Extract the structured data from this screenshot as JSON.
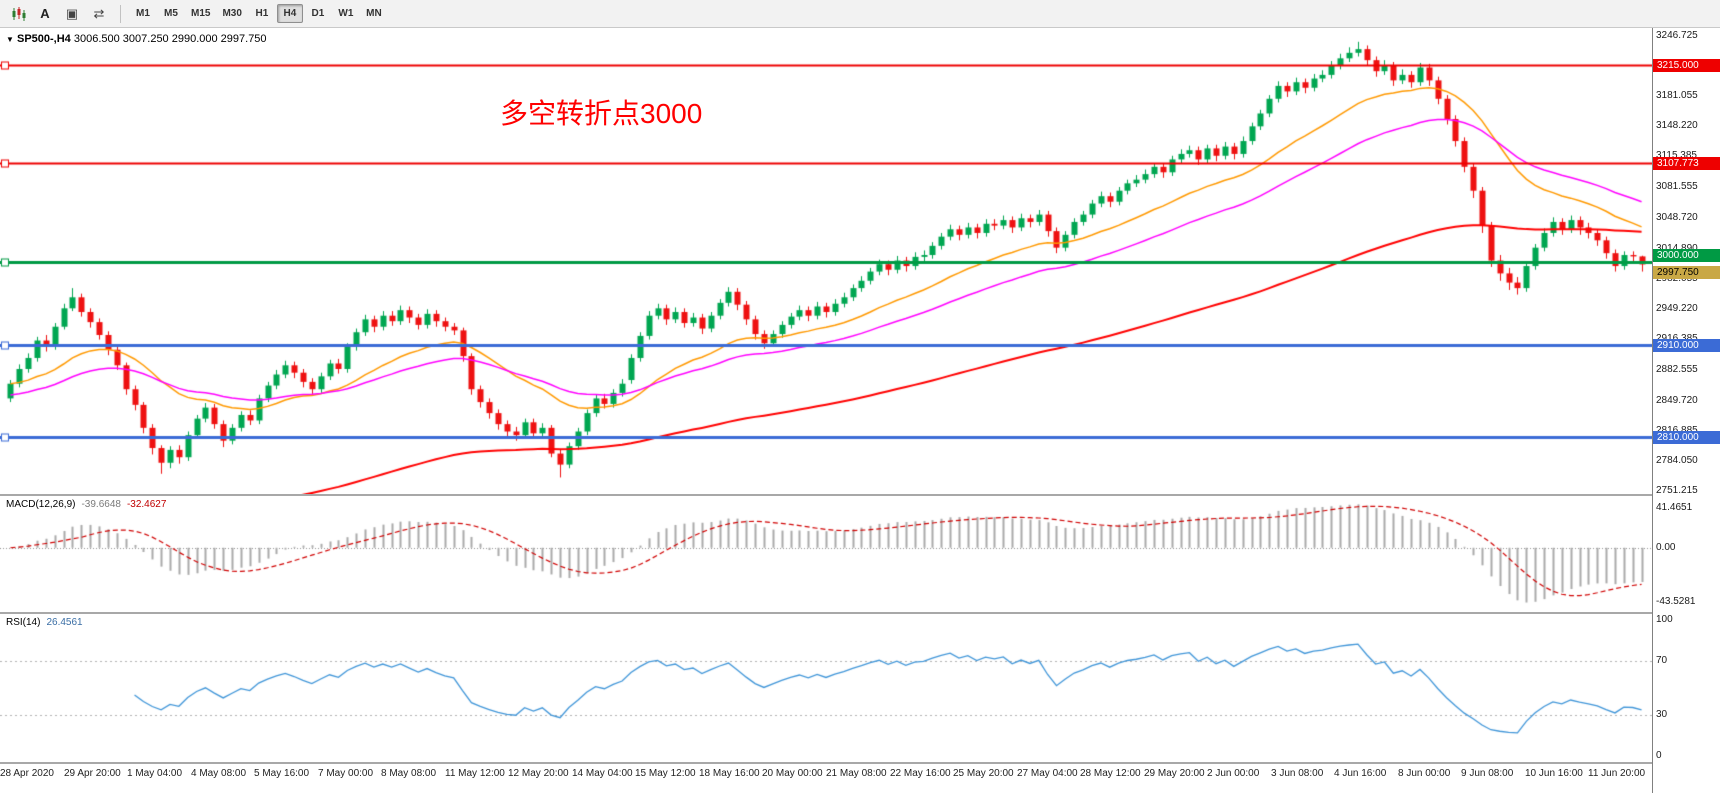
{
  "toolbar": {
    "icons": [
      "chart-window-icon",
      "text-tool-icon",
      "objects-icon",
      "auto-scroll-icon"
    ],
    "timeframes": [
      "M1",
      "M5",
      "M15",
      "M30",
      "H1",
      "H4",
      "D1",
      "W1",
      "MN"
    ],
    "active_timeframe": "H4"
  },
  "chart": {
    "symbol_text": "SP500-,H4",
    "ohlc_text": "3006.500 3007.250 2990.000 2997.750",
    "annotation": {
      "text": "多空转折点3000",
      "color": "#ff0000"
    },
    "price_axis": {
      "labels": [
        "3246.725",
        "3213.890",
        "3181.055",
        "3148.220",
        "3115.385",
        "3081.555",
        "3048.720",
        "3014.890",
        "2982.055",
        "2949.220",
        "2916.385",
        "2882.555",
        "2849.720",
        "2816.885",
        "2784.050",
        "2751.215"
      ]
    },
    "hlines": [
      {
        "price": 3215.0,
        "label": "3215.000",
        "color": "#ee0000",
        "width": 2
      },
      {
        "price": 3107.773,
        "label": "3107.773",
        "color": "#ee0000",
        "width": 2
      },
      {
        "price": 3000.0,
        "label": "3000.000",
        "color": "#009a44",
        "width": 3
      },
      {
        "price": 2910.0,
        "label": "2910.000",
        "color": "#3b6bd6",
        "width": 3
      },
      {
        "price": 2810.0,
        "label": "2810.000",
        "color": "#3b6bd6",
        "width": 3
      }
    ],
    "current_price": {
      "value": 2997.75,
      "label": "2997.750",
      "bg": "#c9a845"
    }
  },
  "chart_data": {
    "type": "candlestick-ohlc",
    "symbol": "SP500-",
    "timeframe": "H4",
    "price_range": {
      "min": 2748,
      "max": 3255
    },
    "colors": {
      "up": "#00a651",
      "down": "#ee1111"
    },
    "moving_averages": [
      {
        "name": "fast-ma",
        "color": "#ff9900",
        "period": 21,
        "width": 1.5
      },
      {
        "name": "medium-ma",
        "color": "#ff00ff",
        "period": 40,
        "seed": 2855,
        "width": 1.5
      },
      {
        "name": "slow-ma",
        "color": "#ff0000",
        "period": 120,
        "seed": 2660,
        "width": 2
      }
    ],
    "candles": [
      [
        2852,
        2872,
        2848,
        2868
      ],
      [
        2868,
        2889,
        2864,
        2884
      ],
      [
        2884,
        2901,
        2880,
        2896
      ],
      [
        2896,
        2919,
        2892,
        2915
      ],
      [
        2915,
        2921,
        2903,
        2908
      ],
      [
        2908,
        2934,
        2905,
        2930
      ],
      [
        2930,
        2955,
        2927,
        2950
      ],
      [
        2950,
        2972,
        2947,
        2962
      ],
      [
        2962,
        2966,
        2941,
        2946
      ],
      [
        2946,
        2950,
        2929,
        2935
      ],
      [
        2935,
        2939,
        2916,
        2921
      ],
      [
        2921,
        2925,
        2899,
        2905
      ],
      [
        2905,
        2909,
        2883,
        2888
      ],
      [
        2888,
        2891,
        2856,
        2862
      ],
      [
        2862,
        2866,
        2839,
        2845
      ],
      [
        2845,
        2848,
        2814,
        2820
      ],
      [
        2820,
        2824,
        2791,
        2798
      ],
      [
        2798,
        2801,
        2770,
        2782
      ],
      [
        2782,
        2800,
        2776,
        2796
      ],
      [
        2796,
        2801,
        2781,
        2788
      ],
      [
        2788,
        2816,
        2784,
        2812
      ],
      [
        2812,
        2834,
        2808,
        2830
      ],
      [
        2830,
        2847,
        2826,
        2842
      ],
      [
        2842,
        2846,
        2819,
        2824
      ],
      [
        2824,
        2828,
        2799,
        2806
      ],
      [
        2806,
        2824,
        2802,
        2820
      ],
      [
        2820,
        2838,
        2816,
        2834
      ],
      [
        2834,
        2839,
        2823,
        2828
      ],
      [
        2828,
        2856,
        2824,
        2852
      ],
      [
        2852,
        2870,
        2848,
        2866
      ],
      [
        2866,
        2883,
        2862,
        2878
      ],
      [
        2878,
        2893,
        2874,
        2888
      ],
      [
        2888,
        2892,
        2874,
        2880
      ],
      [
        2880,
        2884,
        2864,
        2870
      ],
      [
        2870,
        2874,
        2856,
        2862
      ],
      [
        2862,
        2880,
        2858,
        2876
      ],
      [
        2876,
        2894,
        2872,
        2890
      ],
      [
        2890,
        2895,
        2879,
        2884
      ],
      [
        2884,
        2912,
        2880,
        2908
      ],
      [
        2908,
        2928,
        2904,
        2924
      ],
      [
        2924,
        2943,
        2920,
        2938
      ],
      [
        2938,
        2942,
        2924,
        2930
      ],
      [
        2930,
        2947,
        2926,
        2942
      ],
      [
        2942,
        2947,
        2931,
        2936
      ],
      [
        2936,
        2953,
        2932,
        2948
      ],
      [
        2948,
        2952,
        2934,
        2940
      ],
      [
        2940,
        2944,
        2927,
        2932
      ],
      [
        2932,
        2949,
        2928,
        2944
      ],
      [
        2944,
        2948,
        2930,
        2936
      ],
      [
        2936,
        2940,
        2925,
        2930
      ],
      [
        2930,
        2934,
        2921,
        2926
      ],
      [
        2926,
        2929,
        2892,
        2898
      ],
      [
        2898,
        2901,
        2856,
        2862
      ],
      [
        2862,
        2866,
        2842,
        2848
      ],
      [
        2848,
        2852,
        2830,
        2836
      ],
      [
        2836,
        2840,
        2818,
        2824
      ],
      [
        2824,
        2828,
        2810,
        2816
      ],
      [
        2816,
        2821,
        2806,
        2812
      ],
      [
        2812,
        2830,
        2808,
        2826
      ],
      [
        2826,
        2830,
        2808,
        2814
      ],
      [
        2814,
        2825,
        2810,
        2820
      ],
      [
        2820,
        2823,
        2788,
        2792
      ],
      [
        2792,
        2796,
        2766,
        2780
      ],
      [
        2780,
        2804,
        2776,
        2800
      ],
      [
        2800,
        2820,
        2796,
        2816
      ],
      [
        2816,
        2840,
        2812,
        2836
      ],
      [
        2836,
        2856,
        2832,
        2852
      ],
      [
        2852,
        2857,
        2841,
        2846
      ],
      [
        2846,
        2862,
        2842,
        2858
      ],
      [
        2858,
        2873,
        2854,
        2868
      ],
      [
        2872,
        2900,
        2868,
        2896
      ],
      [
        2896,
        2924,
        2892,
        2920
      ],
      [
        2920,
        2947,
        2916,
        2942
      ],
      [
        2942,
        2955,
        2938,
        2950
      ],
      [
        2950,
        2954,
        2932,
        2938
      ],
      [
        2938,
        2951,
        2934,
        2946
      ],
      [
        2946,
        2950,
        2929,
        2934
      ],
      [
        2934,
        2945,
        2930,
        2940
      ],
      [
        2940,
        2944,
        2922,
        2928
      ],
      [
        2928,
        2946,
        2924,
        2942
      ],
      [
        2942,
        2960,
        2938,
        2956
      ],
      [
        2956,
        2973,
        2952,
        2968
      ],
      [
        2968,
        2972,
        2948,
        2954
      ],
      [
        2954,
        2958,
        2932,
        2938
      ],
      [
        2938,
        2942,
        2916,
        2922
      ],
      [
        2922,
        2926,
        2906,
        2912
      ],
      [
        2912,
        2926,
        2908,
        2922
      ],
      [
        2922,
        2936,
        2918,
        2932
      ],
      [
        2932,
        2945,
        2928,
        2941
      ],
      [
        2941,
        2953,
        2937,
        2948
      ],
      [
        2948,
        2952,
        2936,
        2942
      ],
      [
        2942,
        2957,
        2938,
        2952
      ],
      [
        2952,
        2956,
        2940,
        2946
      ],
      [
        2946,
        2960,
        2942,
        2955
      ],
      [
        2955,
        2967,
        2951,
        2962
      ],
      [
        2962,
        2976,
        2958,
        2972
      ],
      [
        2972,
        2985,
        2968,
        2980
      ],
      [
        2980,
        2994,
        2976,
        2990
      ],
      [
        2990,
        3003,
        2986,
        2998
      ],
      [
        2998,
        3002,
        2986,
        2992
      ],
      [
        2992,
        3007,
        2988,
        3002
      ],
      [
        3002,
        3006,
        2990,
        2996
      ],
      [
        2996,
        3011,
        2992,
        3006
      ],
      [
        3006,
        3013,
        3001,
        3008
      ],
      [
        3008,
        3022,
        3004,
        3018
      ],
      [
        3018,
        3032,
        3014,
        3028
      ],
      [
        3028,
        3041,
        3024,
        3036
      ],
      [
        3036,
        3040,
        3024,
        3030
      ],
      [
        3030,
        3043,
        3026,
        3038
      ],
      [
        3038,
        3042,
        3026,
        3032
      ],
      [
        3032,
        3047,
        3028,
        3042
      ],
      [
        3042,
        3047,
        3035,
        3040
      ],
      [
        3040,
        3051,
        3036,
        3046
      ],
      [
        3046,
        3050,
        3032,
        3038
      ],
      [
        3038,
        3053,
        3034,
        3048
      ],
      [
        3048,
        3052,
        3038,
        3044
      ],
      [
        3044,
        3057,
        3040,
        3052
      ],
      [
        3052,
        3056,
        3028,
        3034
      ],
      [
        3034,
        3038,
        3010,
        3016
      ],
      [
        3016,
        3034,
        3012,
        3030
      ],
      [
        3030,
        3048,
        3026,
        3044
      ],
      [
        3044,
        3056,
        3040,
        3052
      ],
      [
        3052,
        3068,
        3048,
        3064
      ],
      [
        3064,
        3077,
        3060,
        3072
      ],
      [
        3072,
        3076,
        3060,
        3066
      ],
      [
        3066,
        3082,
        3062,
        3078
      ],
      [
        3078,
        3090,
        3074,
        3086
      ],
      [
        3086,
        3095,
        3082,
        3090
      ],
      [
        3090,
        3101,
        3086,
        3096
      ],
      [
        3096,
        3108,
        3092,
        3104
      ],
      [
        3104,
        3108,
        3092,
        3098
      ],
      [
        3098,
        3116,
        3094,
        3112
      ],
      [
        3112,
        3123,
        3108,
        3118
      ],
      [
        3118,
        3127,
        3114,
        3122
      ],
      [
        3122,
        3126,
        3106,
        3112
      ],
      [
        3112,
        3128,
        3108,
        3124
      ],
      [
        3124,
        3128,
        3110,
        3116
      ],
      [
        3116,
        3131,
        3112,
        3126
      ],
      [
        3126,
        3130,
        3112,
        3118
      ],
      [
        3118,
        3137,
        3114,
        3132
      ],
      [
        3132,
        3152,
        3128,
        3148
      ],
      [
        3148,
        3166,
        3144,
        3162
      ],
      [
        3162,
        3182,
        3158,
        3178
      ],
      [
        3178,
        3197,
        3174,
        3192
      ],
      [
        3192,
        3196,
        3180,
        3186
      ],
      [
        3186,
        3201,
        3182,
        3196
      ],
      [
        3196,
        3200,
        3184,
        3190
      ],
      [
        3190,
        3205,
        3186,
        3200
      ],
      [
        3200,
        3209,
        3196,
        3204
      ],
      [
        3204,
        3219,
        3200,
        3214
      ],
      [
        3214,
        3227,
        3210,
        3222
      ],
      [
        3222,
        3234,
        3218,
        3228
      ],
      [
        3228,
        3240,
        3224,
        3232
      ],
      [
        3232,
        3236,
        3214,
        3220
      ],
      [
        3220,
        3224,
        3202,
        3208
      ],
      [
        3208,
        3220,
        3204,
        3214
      ],
      [
        3214,
        3218,
        3192,
        3198
      ],
      [
        3198,
        3210,
        3194,
        3204
      ],
      [
        3204,
        3208,
        3190,
        3196
      ],
      [
        3196,
        3217,
        3192,
        3212
      ],
      [
        3212,
        3216,
        3192,
        3198
      ],
      [
        3198,
        3202,
        3172,
        3178
      ],
      [
        3178,
        3182,
        3150,
        3156
      ],
      [
        3156,
        3160,
        3126,
        3132
      ],
      [
        3132,
        3136,
        3098,
        3104
      ],
      [
        3104,
        3108,
        3070,
        3078
      ],
      [
        3078,
        3082,
        3032,
        3040
      ],
      [
        3040,
        3044,
        2995,
        3002
      ],
      [
        3002,
        3008,
        2980,
        2988
      ],
      [
        2988,
        2994,
        2970,
        2978
      ],
      [
        2978,
        2984,
        2965,
        2972
      ],
      [
        2972,
        3000,
        2968,
        2996
      ],
      [
        2996,
        3020,
        2992,
        3016
      ],
      [
        3016,
        3037,
        3012,
        3032
      ],
      [
        3032,
        3049,
        3028,
        3044
      ],
      [
        3044,
        3048,
        3030,
        3036
      ],
      [
        3036,
        3051,
        3032,
        3046
      ],
      [
        3046,
        3050,
        3030,
        3038
      ],
      [
        3038,
        3043,
        3026,
        3032
      ],
      [
        3032,
        3036,
        3018,
        3024
      ],
      [
        3024,
        3028,
        3004,
        3010
      ],
      [
        3010,
        3014,
        2990,
        2996
      ],
      [
        2996,
        3012,
        2992,
        3008
      ],
      [
        3008,
        3012,
        3000,
        3006.5
      ],
      [
        3006.5,
        3007.25,
        2990,
        2997.75
      ]
    ],
    "x_axis_labels": [
      "28 Apr 2020",
      "29 Apr 20:00",
      "1 May 04:00",
      "4 May 08:00",
      "5 May 16:00",
      "7 May 00:00",
      "8 May 08:00",
      "11 May 12:00",
      "12 May 20:00",
      "14 May 04:00",
      "15 May 12:00",
      "18 May 16:00",
      "20 May 00:00",
      "21 May 08:00",
      "22 May 16:00",
      "25 May 20:00",
      "27 May 04:00",
      "28 May 12:00",
      "29 May 20:00",
      "2 Jun 00:00",
      "3 Jun 08:00",
      "4 Jun 16:00",
      "8 Jun 00:00",
      "9 Jun 08:00",
      "10 Jun 16:00",
      "11 Jun 20:00"
    ]
  },
  "macd": {
    "name": "MACD(12,26,9)",
    "value_text": "-39.6648",
    "signal_text": "-32.4627",
    "params": [
      12,
      26,
      9
    ],
    "scale_labels": {
      "top": "41.4651",
      "zero": "0.00",
      "bottom": "-43.5281"
    },
    "colors": {
      "histogram": "#ababab",
      "signal": "#d00000"
    }
  },
  "rsi": {
    "name": "RSI(14)",
    "value_text": "26.4561",
    "period": 14,
    "levels": [
      70,
      30
    ],
    "scale_labels": [
      "100",
      "70",
      "30",
      "0"
    ],
    "color": "#3f95d8"
  }
}
